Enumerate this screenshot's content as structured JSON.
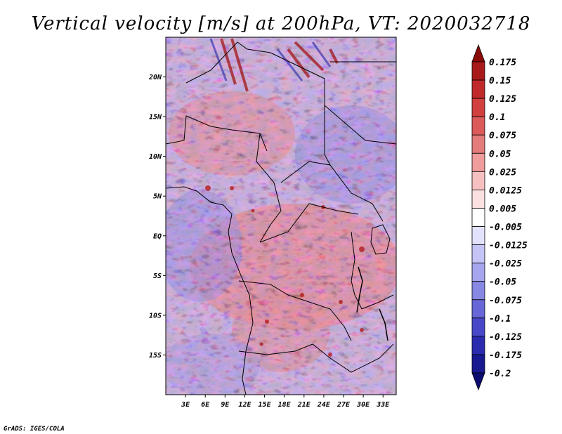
{
  "chart_data": {
    "type": "heatmap",
    "title": "Vertical velocity [m/s] at 200hPa, VT: 2020032718",
    "variable": "Vertical velocity",
    "units": "m/s",
    "level": "200hPa",
    "valid_time": "2020032718",
    "x_ticks": [
      {
        "value": 3,
        "label": "3E"
      },
      {
        "value": 6,
        "label": "6E"
      },
      {
        "value": 9,
        "label": "9E"
      },
      {
        "value": 12,
        "label": "12E"
      },
      {
        "value": 15,
        "label": "15E"
      },
      {
        "value": 18,
        "label": "18E"
      },
      {
        "value": 21,
        "label": "21E"
      },
      {
        "value": 24,
        "label": "24E"
      },
      {
        "value": 27,
        "label": "27E"
      },
      {
        "value": 30,
        "label": "30E"
      },
      {
        "value": 33,
        "label": "33E"
      }
    ],
    "y_ticks": [
      {
        "value": 20,
        "label": "20N"
      },
      {
        "value": 15,
        "label": "15N"
      },
      {
        "value": 10,
        "label": "10N"
      },
      {
        "value": 5,
        "label": "5N"
      },
      {
        "value": 0,
        "label": "EQ"
      },
      {
        "value": -5,
        "label": "5S"
      },
      {
        "value": -10,
        "label": "10S"
      },
      {
        "value": -15,
        "label": "15S"
      }
    ],
    "xlim": [
      0,
      35
    ],
    "ylim": [
      -20,
      25
    ],
    "colorbar": {
      "levels": [
        "0.175",
        "0.15",
        "0.125",
        "0.1",
        "0.075",
        "0.05",
        "0.025",
        "0.0125",
        "0.005",
        "-0.005",
        "-0.0125",
        "-0.025",
        "-0.05",
        "-0.075",
        "-0.1",
        "-0.125",
        "-0.175",
        "-0.2"
      ],
      "colors": [
        "#8b0a0a",
        "#a81a1a",
        "#c02a2a",
        "#d13f3f",
        "#dc5a5a",
        "#e47c7c",
        "#ee9c9c",
        "#f6c0c0",
        "#fbe0e0",
        "#ffffff",
        "#e2e2fc",
        "#c4c4f6",
        "#a6a6ee",
        "#8787e4",
        "#6767d8",
        "#4747c8",
        "#2b2bb0",
        "#181890",
        "#0c0c70"
      ]
    }
  },
  "credit": "GrADS: IGES/COLA"
}
